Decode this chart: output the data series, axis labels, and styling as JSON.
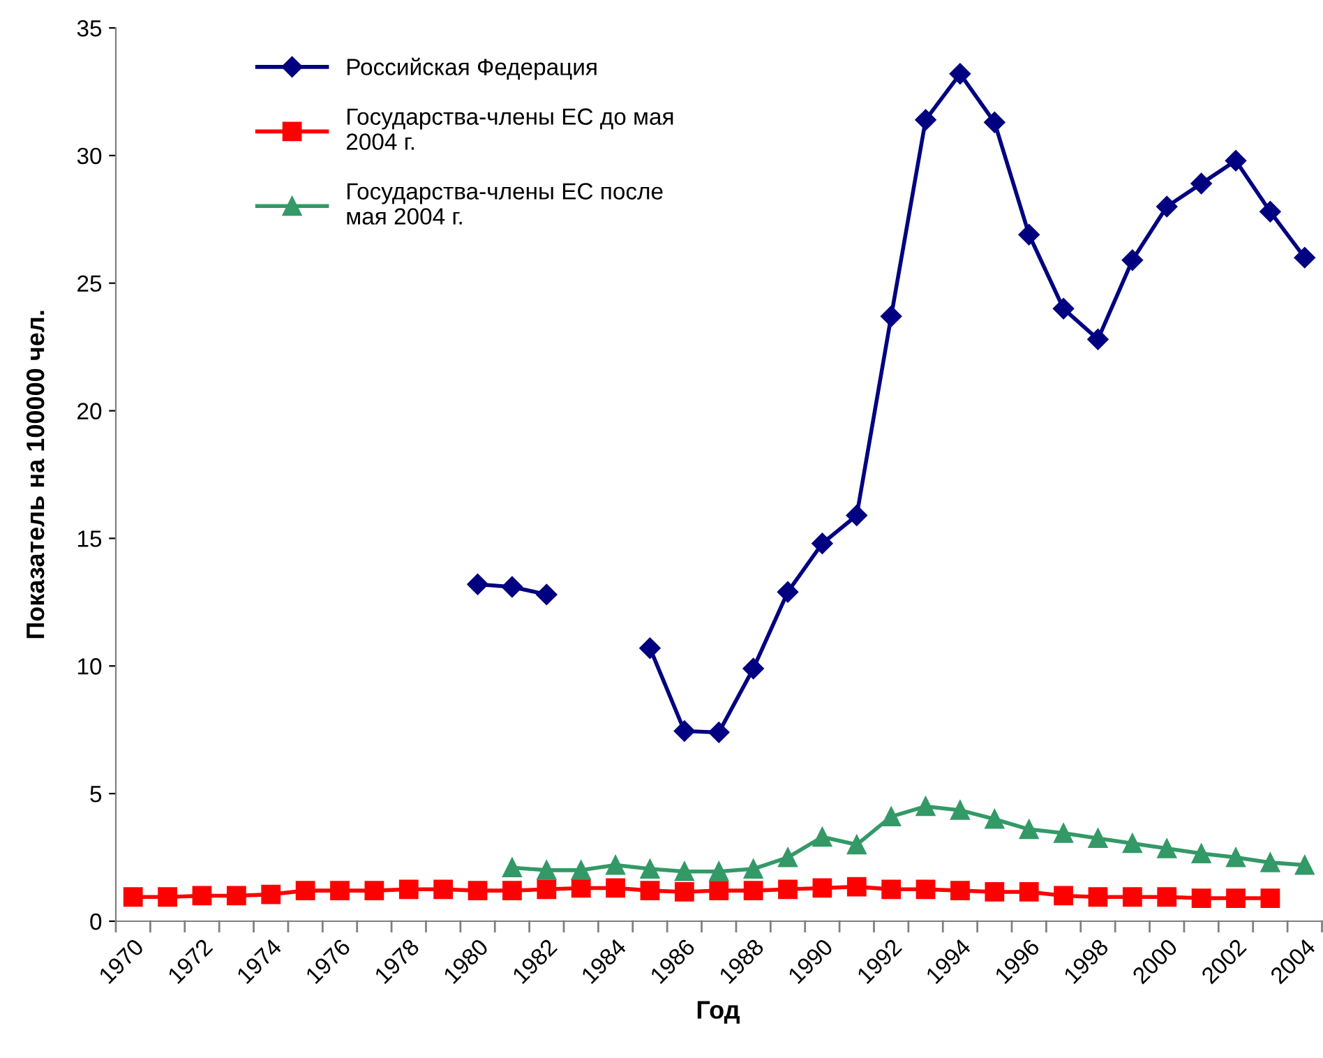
{
  "chart_data": {
    "type": "line",
    "xlabel": "Год",
    "ylabel": "Показатель на 100000 чел.",
    "categories": [
      "1970",
      null,
      "1972",
      null,
      "1974",
      null,
      "1976",
      null,
      "1978",
      null,
      "1980",
      null,
      "1982",
      null,
      "1984",
      null,
      "1986",
      null,
      "1988",
      null,
      "1990",
      null,
      "1992",
      null,
      "1994",
      null,
      "1996",
      null,
      "1998",
      null,
      "2000",
      null,
      "2002",
      null,
      "2004"
    ],
    "series": [
      {
        "name": "Российская Федерация",
        "color": "#000080",
        "marker": "diamond",
        "values": [
          null,
          null,
          null,
          null,
          null,
          null,
          null,
          null,
          null,
          null,
          13.2,
          13.1,
          12.8,
          null,
          null,
          10.7,
          7.45,
          7.4,
          9.9,
          12.9,
          14.8,
          15.9,
          23.7,
          31.4,
          33.2,
          31.3,
          26.9,
          24.0,
          22.8,
          25.9,
          28.0,
          28.9,
          29.8,
          27.8,
          26.0
        ]
      },
      {
        "name": "Государства-члены ЕС до мая 2004 г.",
        "color": "#ff0000",
        "marker": "square",
        "values": [
          0.95,
          0.95,
          1.0,
          1.0,
          1.05,
          1.2,
          1.2,
          1.2,
          1.25,
          1.25,
          1.2,
          1.2,
          1.25,
          1.3,
          1.3,
          1.2,
          1.15,
          1.2,
          1.2,
          1.25,
          1.3,
          1.35,
          1.25,
          1.25,
          1.2,
          1.15,
          1.15,
          1.0,
          0.95,
          0.95,
          0.95,
          0.9,
          0.9,
          0.9,
          null
        ]
      },
      {
        "name": "Государства-члены ЕС после мая 2004 г.",
        "color": "#339966",
        "marker": "triangle",
        "values": [
          null,
          null,
          null,
          null,
          null,
          null,
          null,
          null,
          null,
          null,
          null,
          2.1,
          2.0,
          2.0,
          2.2,
          2.05,
          1.95,
          1.95,
          2.05,
          2.5,
          3.3,
          3.0,
          4.1,
          4.5,
          4.35,
          4.0,
          3.6,
          3.45,
          3.25,
          3.05,
          2.85,
          2.65,
          2.5,
          2.3,
          2.2
        ]
      }
    ],
    "ylim": [
      0,
      35
    ],
    "yticks": [
      0,
      5,
      10,
      15,
      20,
      25,
      30,
      35
    ],
    "grid": false,
    "legend": "top left",
    "line_style": "solid"
  }
}
